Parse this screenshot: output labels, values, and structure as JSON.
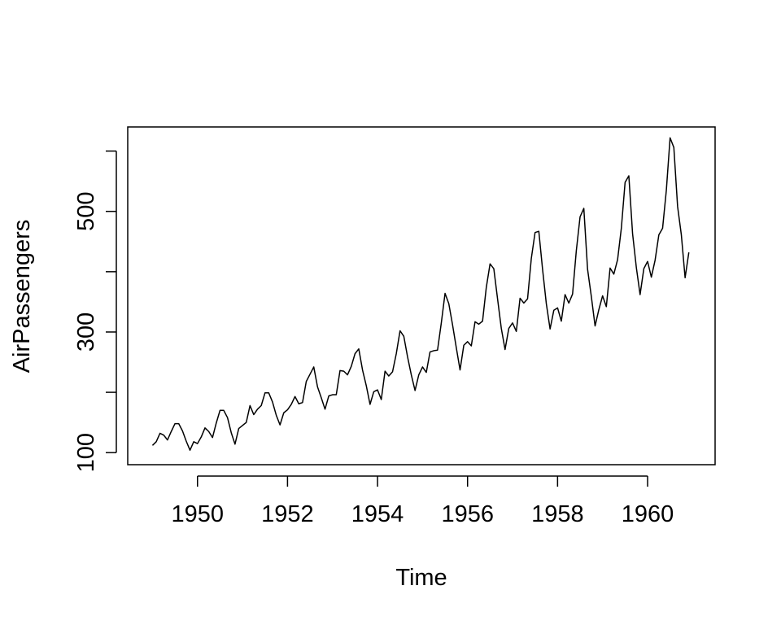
{
  "chart_data": {
    "type": "line",
    "title": "",
    "xlabel": "Time",
    "ylabel": "AirPassengers",
    "xlim": [
      1948.45,
      1961.5
    ],
    "ylim": [
      80,
      640
    ],
    "x_ticks": [
      {
        "value": 1950,
        "label": "1950"
      },
      {
        "value": 1952,
        "label": "1952"
      },
      {
        "value": 1954,
        "label": "1954"
      },
      {
        "value": 1956,
        "label": "1956"
      },
      {
        "value": 1958,
        "label": "1958"
      },
      {
        "value": 1960,
        "label": "1960"
      }
    ],
    "y_ticks": [
      {
        "value": 100,
        "label": "100"
      },
      {
        "value": 200,
        "label": ""
      },
      {
        "value": 300,
        "label": "300"
      },
      {
        "value": 400,
        "label": ""
      },
      {
        "value": 500,
        "label": "500"
      },
      {
        "value": 600,
        "label": ""
      }
    ],
    "series": [
      {
        "color": "#000000",
        "x_start": 1949,
        "x_step_per_point": 0.0833333,
        "values": [
          112,
          118,
          132,
          129,
          121,
          135,
          148,
          148,
          136,
          119,
          104,
          118,
          115,
          126,
          141,
          135,
          125,
          149,
          170,
          170,
          158,
          133,
          114,
          140,
          145,
          150,
          178,
          163,
          172,
          178,
          199,
          199,
          184,
          162,
          146,
          166,
          171,
          180,
          193,
          181,
          183,
          218,
          230,
          242,
          209,
          191,
          172,
          194,
          196,
          196,
          236,
          235,
          229,
          243,
          264,
          272,
          237,
          211,
          180,
          201,
          204,
          188,
          235,
          227,
          234,
          264,
          302,
          293,
          259,
          229,
          203,
          229,
          242,
          233,
          267,
          269,
          270,
          315,
          364,
          347,
          312,
          274,
          237,
          278,
          284,
          277,
          317,
          313,
          318,
          374,
          413,
          405,
          355,
          306,
          271,
          306,
          315,
          301,
          356,
          348,
          355,
          422,
          465,
          467,
          404,
          347,
          305,
          336,
          340,
          318,
          362,
          348,
          363,
          435,
          491,
          505,
          404,
          359,
          310,
          337,
          360,
          342,
          406,
          396,
          420,
          472,
          548,
          559,
          463,
          407,
          362,
          405,
          417,
          391,
          419,
          461,
          472,
          535,
          622,
          606,
          508,
          461,
          390,
          432
        ]
      }
    ],
    "grid": false,
    "legend": "none",
    "frame": "box"
  }
}
